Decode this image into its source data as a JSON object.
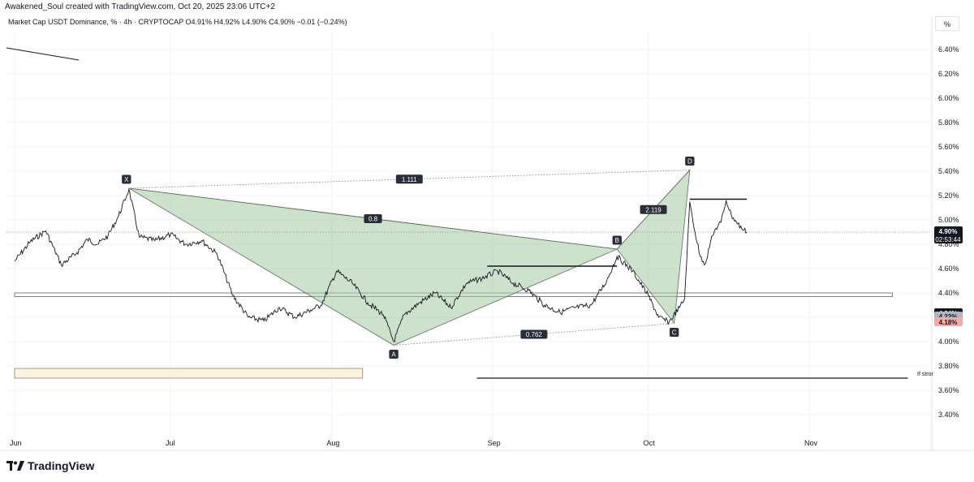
{
  "attribution": "Awakened_Soul created with TradingView.com, Oct 20, 2025 23:06 UTC+2",
  "legend": {
    "title": "Market Cap USDT Dominance, % · 4h · CRYPTOCAP",
    "open": "O4.91%",
    "high": "H4.92%",
    "low": "L4.90%",
    "close": "C4.90%",
    "change": "−0.01 (−0.24%)"
  },
  "percent_toggle": "%",
  "brand": "TradingView",
  "colors": {
    "pattern_fill": "#a5c8a4",
    "pattern_stroke": "#5e6e5e",
    "zone_fill": "#fdf3e1",
    "price_badge": "#131722",
    "red_badge": "#f7a9a7",
    "gray_badge": "#b2b5be"
  },
  "price_labels": {
    "last_price": "4.90%",
    "countdown": "02:53:44",
    "label_a": "4.24%",
    "label_b": "4.22%",
    "label_c": "4.18%"
  },
  "annotation_text": "If stror",
  "chart_data": {
    "type": "line",
    "title": "Market Cap USDT Dominance, % · 4h · CRYPTOCAP",
    "x_ticks": [
      "Jun",
      "Jul",
      "Aug",
      "Sep",
      "Oct",
      "Nov"
    ],
    "x_tick_days": [
      0,
      30,
      61,
      92,
      122,
      153
    ],
    "y_ticks": [
      "6.40%",
      "6.20%",
      "6.00%",
      "5.80%",
      "5.60%",
      "5.40%",
      "5.20%",
      "5.00%",
      "4.80%",
      "4.60%",
      "4.40%",
      "4.20%",
      "4.00%",
      "3.80%",
      "3.60%",
      "3.40%"
    ],
    "ylim": [
      3.3,
      6.55
    ],
    "grid": true,
    "series": [
      {
        "name": "",
        "x": [
          "2025-06-01",
          "2025-06-04",
          "2025-06-07",
          "2025-06-10",
          "2025-06-13",
          "2025-06-15",
          "2025-06-17",
          "2025-06-19",
          "2025-06-21",
          "2025-06-23",
          "2025-06-25",
          "2025-06-28",
          "2025-07-01",
          "2025-07-04",
          "2025-07-07",
          "2025-07-10",
          "2025-07-13",
          "2025-07-16",
          "2025-07-19",
          "2025-07-22",
          "2025-07-25",
          "2025-07-28",
          "2025-07-30",
          "2025-08-02",
          "2025-08-05",
          "2025-08-08",
          "2025-08-11",
          "2025-08-13",
          "2025-08-15",
          "2025-08-18",
          "2025-08-21",
          "2025-08-24",
          "2025-08-27",
          "2025-08-30",
          "2025-09-02",
          "2025-09-05",
          "2025-09-08",
          "2025-09-11",
          "2025-09-14",
          "2025-09-17",
          "2025-09-20",
          "2025-09-23",
          "2025-09-25",
          "2025-09-28",
          "2025-10-01",
          "2025-10-03",
          "2025-10-05",
          "2025-10-07",
          "2025-10-08",
          "2025-10-09",
          "2025-10-10",
          "2025-10-11",
          "2025-10-12",
          "2025-10-13",
          "2025-10-14",
          "2025-10-15",
          "2025-10-16",
          "2025-10-17",
          "2025-10-18",
          "2025-10-19",
          "2025-10-20"
        ],
        "y": [
          4.66,
          4.82,
          4.91,
          4.63,
          4.73,
          4.84,
          4.8,
          4.87,
          5.03,
          5.25,
          4.86,
          4.83,
          4.88,
          4.8,
          4.83,
          4.72,
          4.38,
          4.2,
          4.17,
          4.28,
          4.2,
          4.26,
          4.3,
          4.58,
          4.48,
          4.32,
          4.22,
          4.0,
          4.22,
          4.32,
          4.4,
          4.28,
          4.48,
          4.52,
          4.58,
          4.48,
          4.42,
          4.3,
          4.24,
          4.28,
          4.3,
          4.5,
          4.7,
          4.58,
          4.38,
          4.2,
          4.16,
          4.28,
          4.35,
          5.15,
          4.9,
          4.7,
          4.64,
          4.82,
          4.93,
          4.98,
          5.16,
          5.04,
          4.98,
          4.93,
          4.9
        ]
      }
    ],
    "harmonic_pattern": {
      "points": [
        {
          "label": "X",
          "date": "2025-06-23",
          "value": 5.26
        },
        {
          "label": "A",
          "date": "2025-08-13",
          "value": 3.97
        },
        {
          "label": "B",
          "date": "2025-09-25",
          "value": 4.76
        },
        {
          "label": "C",
          "date": "2025-10-06",
          "value": 4.15
        },
        {
          "label": "D",
          "date": "2025-10-09",
          "value": 5.41
        }
      ],
      "ratios": [
        {
          "text": "0.8",
          "between": "X-B"
        },
        {
          "text": "0.762",
          "between": "A-C"
        },
        {
          "text": "2.119",
          "between": "B-D"
        },
        {
          "text": "1.111",
          "between": "X-D"
        }
      ]
    },
    "horizontal_lines": [
      {
        "from": "2025-08-31",
        "to": "2025-09-25",
        "value": 4.62
      },
      {
        "from": "2025-10-09",
        "to": "2025-10-20",
        "value": 5.17
      },
      {
        "from": "2025-08-29",
        "to": "2025-11-20",
        "value": 3.7
      }
    ],
    "zones": [
      {
        "from": "2025-06-01",
        "to": "2025-11-17",
        "low": 4.37,
        "high": 4.4
      },
      {
        "from": "2025-06-01",
        "to": "2025-08-07",
        "low": 3.7,
        "high": 3.78
      }
    ],
    "last_value": 4.9
  }
}
